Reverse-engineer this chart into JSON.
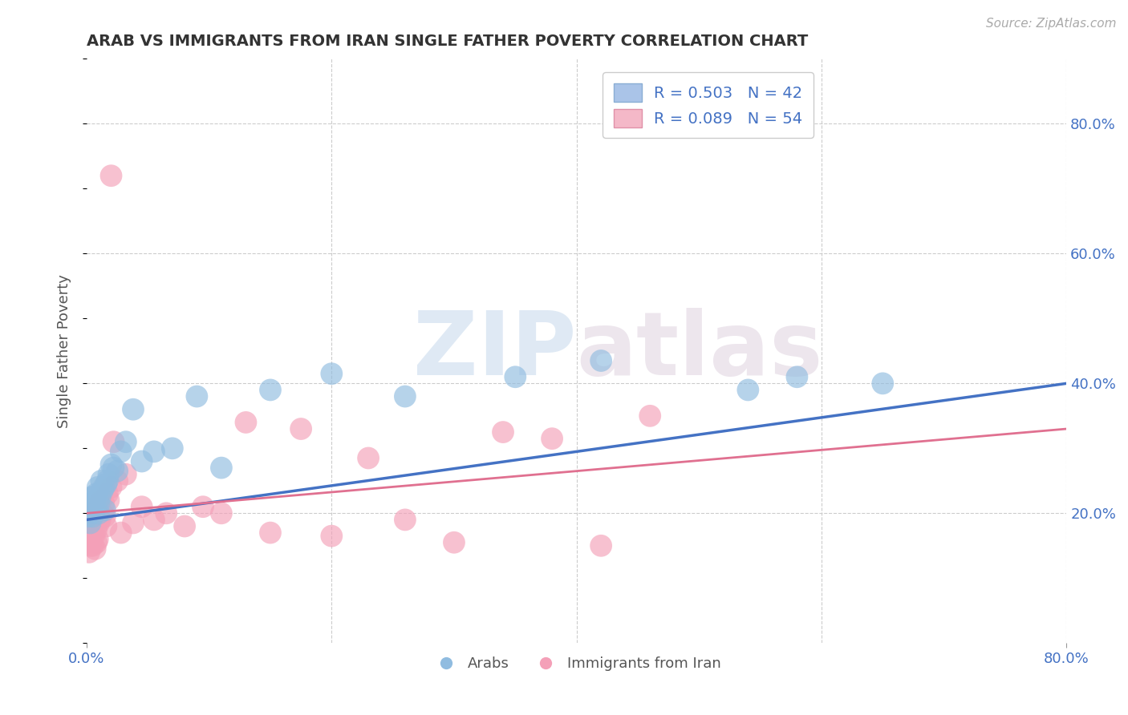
{
  "title": "ARAB VS IMMIGRANTS FROM IRAN SINGLE FATHER POVERTY CORRELATION CHART",
  "source": "Source: ZipAtlas.com",
  "ylabel_label": "Single Father Poverty",
  "xlim": [
    0.0,
    0.8
  ],
  "ylim": [
    0.0,
    0.9
  ],
  "xtick_positions": [
    0.0,
    0.8
  ],
  "xticklabels": [
    "0.0%",
    "80.0%"
  ],
  "ytick_positions": [
    0.2,
    0.4,
    0.6,
    0.8
  ],
  "yticklabels_right": [
    "20.0%",
    "40.0%",
    "60.0%",
    "80.0%"
  ],
  "grid_color": "#cccccc",
  "background_color": "#ffffff",
  "watermark_zip": "ZIP",
  "watermark_atlas": "atlas",
  "series_arab": {
    "color": "#90bce0",
    "edge_color": "none",
    "x": [
      0.001,
      0.002,
      0.003,
      0.003,
      0.004,
      0.004,
      0.005,
      0.005,
      0.006,
      0.007,
      0.007,
      0.008,
      0.009,
      0.01,
      0.01,
      0.011,
      0.012,
      0.013,
      0.014,
      0.015,
      0.016,
      0.017,
      0.018,
      0.02,
      0.022,
      0.025,
      0.028,
      0.032,
      0.038,
      0.045,
      0.055,
      0.07,
      0.09,
      0.11,
      0.15,
      0.2,
      0.26,
      0.35,
      0.42,
      0.54,
      0.58,
      0.65
    ],
    "y": [
      0.195,
      0.2,
      0.185,
      0.215,
      0.21,
      0.225,
      0.195,
      0.215,
      0.225,
      0.205,
      0.22,
      0.23,
      0.24,
      0.2,
      0.215,
      0.225,
      0.25,
      0.235,
      0.24,
      0.205,
      0.245,
      0.25,
      0.26,
      0.275,
      0.27,
      0.265,
      0.295,
      0.31,
      0.36,
      0.28,
      0.295,
      0.3,
      0.38,
      0.27,
      0.39,
      0.415,
      0.38,
      0.41,
      0.435,
      0.39,
      0.41,
      0.4
    ]
  },
  "series_iran": {
    "color": "#f4a0b8",
    "edge_color": "none",
    "x": [
      0.001,
      0.001,
      0.002,
      0.002,
      0.003,
      0.003,
      0.003,
      0.004,
      0.004,
      0.005,
      0.005,
      0.005,
      0.006,
      0.006,
      0.007,
      0.007,
      0.008,
      0.008,
      0.009,
      0.009,
      0.01,
      0.01,
      0.011,
      0.012,
      0.013,
      0.014,
      0.015,
      0.016,
      0.017,
      0.018,
      0.02,
      0.022,
      0.025,
      0.028,
      0.032,
      0.038,
      0.045,
      0.055,
      0.065,
      0.08,
      0.095,
      0.11,
      0.13,
      0.15,
      0.175,
      0.2,
      0.23,
      0.26,
      0.3,
      0.34,
      0.38,
      0.42,
      0.46,
      0.02
    ],
    "y": [
      0.155,
      0.175,
      0.14,
      0.165,
      0.15,
      0.185,
      0.2,
      0.16,
      0.195,
      0.15,
      0.17,
      0.19,
      0.165,
      0.185,
      0.145,
      0.195,
      0.175,
      0.155,
      0.16,
      0.2,
      0.185,
      0.215,
      0.19,
      0.22,
      0.2,
      0.215,
      0.195,
      0.18,
      0.23,
      0.22,
      0.24,
      0.31,
      0.25,
      0.17,
      0.26,
      0.185,
      0.21,
      0.19,
      0.2,
      0.18,
      0.21,
      0.2,
      0.34,
      0.17,
      0.33,
      0.165,
      0.285,
      0.19,
      0.155,
      0.325,
      0.315,
      0.15,
      0.35,
      0.72
    ]
  },
  "trendline_arab": {
    "color": "#4472c4",
    "x_start": 0.0,
    "x_end": 0.8,
    "y_start": 0.19,
    "y_end": 0.4
  },
  "trendline_iran": {
    "color": "#e07090",
    "x_start": 0.0,
    "x_end": 0.8,
    "y_start": 0.2,
    "y_end": 0.33
  }
}
